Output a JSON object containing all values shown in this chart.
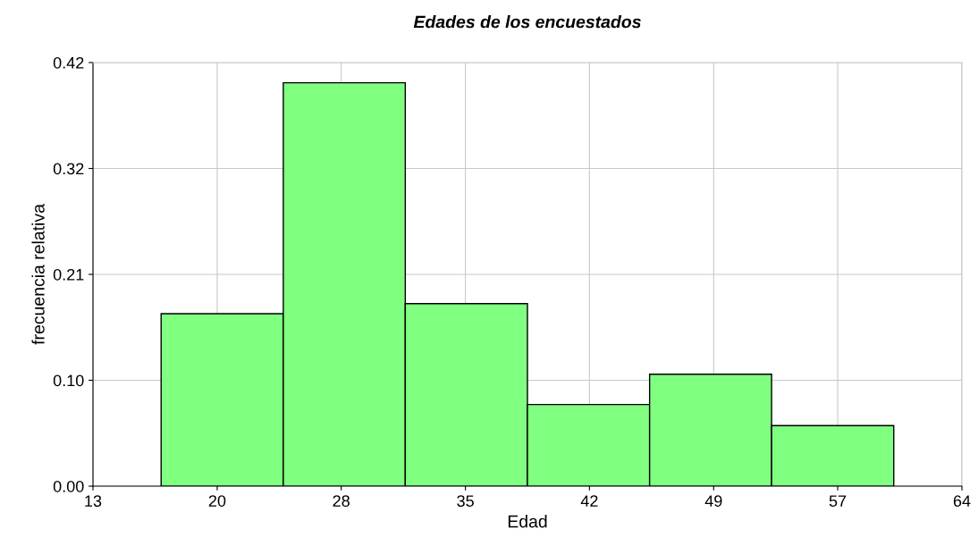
{
  "chart_data": {
    "type": "histogram",
    "title": "Edades de los encuestados",
    "xlabel": "Edad",
    "ylabel": "frecuencia relativa",
    "bins": [
      17,
      24.17,
      31.33,
      38.5,
      45.67,
      52.83,
      60
    ],
    "values": [
      0.171,
      0.4,
      0.181,
      0.081,
      0.111,
      0.06
    ],
    "color": "#80ff80",
    "xlim": [
      13,
      64
    ],
    "xticks": [
      13,
      {
        "value": 20.29,
        "label": "20"
      },
      {
        "value": 27.57,
        "label": "28"
      },
      {
        "value": 34.86,
        "label": "35"
      },
      {
        "value": 42.14,
        "label": "42"
      },
      {
        "value": 49.43,
        "label": "49"
      },
      {
        "value": 56.71,
        "label": "57"
      },
      64
    ],
    "ylim": [
      0,
      0.42
    ],
    "yticks": [
      {
        "value": 0,
        "label": "0.00"
      },
      {
        "value": 0.105,
        "label": "0.10"
      },
      0.21,
      {
        "value": 0.315,
        "label": "0.32"
      },
      0.42
    ],
    "grid": true
  }
}
